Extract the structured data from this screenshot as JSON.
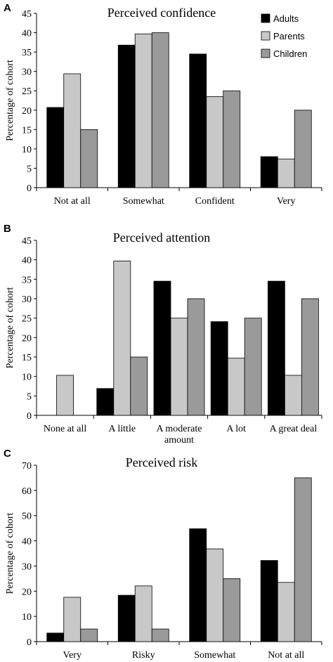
{
  "chart_data": [
    {
      "type": "bar",
      "panel_label": "A",
      "title": "Perceived confidence",
      "ylabel": "Percentage of cohort",
      "ylim": [
        0,
        45
      ],
      "yticks": [
        0,
        5,
        10,
        15,
        20,
        25,
        30,
        35,
        40,
        45
      ],
      "categories": [
        [
          "Not at all"
        ],
        [
          "Somewhat"
        ],
        [
          "Confident"
        ],
        [
          "Very"
        ]
      ],
      "series": [
        {
          "name": "Adults",
          "color": "#000000",
          "values": [
            20.7,
            36.8,
            34.5,
            8.0
          ]
        },
        {
          "name": "Parents",
          "color": "#c8c8c8",
          "values": [
            29.4,
            39.7,
            23.5,
            7.4
          ]
        },
        {
          "name": "Children",
          "color": "#9a9a9a",
          "values": [
            15.0,
            40.0,
            25.0,
            20.0
          ]
        }
      ],
      "legend": {
        "position": "top-right"
      }
    },
    {
      "type": "bar",
      "panel_label": "B",
      "title": "Perceived attention",
      "ylabel": "Percentage of cohort",
      "ylim": [
        0,
        45
      ],
      "yticks": [
        0,
        5,
        10,
        15,
        20,
        25,
        30,
        35,
        40,
        45
      ],
      "categories": [
        [
          "None at all"
        ],
        [
          "A little"
        ],
        [
          "A moderate",
          "amount"
        ],
        [
          "A lot"
        ],
        [
          "A great deal"
        ]
      ],
      "series": [
        {
          "name": "Adults",
          "color": "#000000",
          "values": [
            0,
            6.9,
            34.5,
            24.1,
            34.5
          ]
        },
        {
          "name": "Parents",
          "color": "#c8c8c8",
          "values": [
            10.3,
            39.7,
            25.0,
            14.7,
            10.3
          ]
        },
        {
          "name": "Children",
          "color": "#9a9a9a",
          "values": [
            0,
            15.0,
            30.0,
            25.0,
            30.0
          ]
        }
      ]
    },
    {
      "type": "bar",
      "panel_label": "C",
      "title": "Perceived risk",
      "ylabel": "Percentage of cohort",
      "ylim": [
        0,
        70
      ],
      "yticks": [
        0,
        10,
        20,
        30,
        40,
        50,
        60,
        70
      ],
      "categories": [
        [
          "Very"
        ],
        [
          "Risky"
        ],
        [
          "Somewhat"
        ],
        [
          "Not at all"
        ]
      ],
      "series": [
        {
          "name": "Adults",
          "color": "#000000",
          "values": [
            3.4,
            18.4,
            44.8,
            32.2
          ]
        },
        {
          "name": "Parents",
          "color": "#c8c8c8",
          "values": [
            17.6,
            22.1,
            36.8,
            23.5
          ]
        },
        {
          "name": "Children",
          "color": "#9a9a9a",
          "values": [
            5.0,
            5.0,
            25.0,
            65.0
          ]
        }
      ]
    }
  ]
}
